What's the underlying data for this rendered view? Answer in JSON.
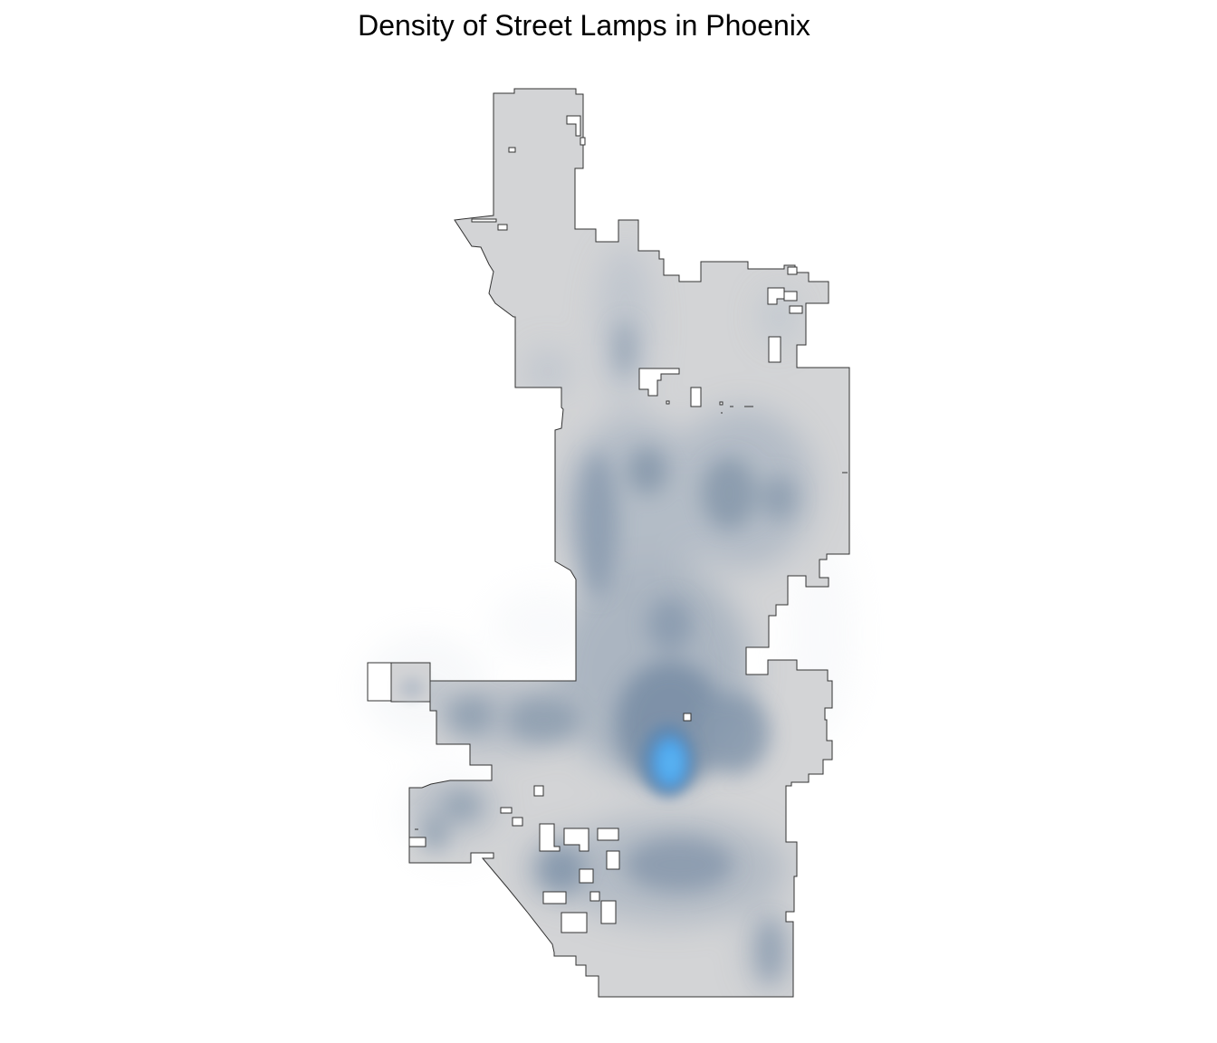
{
  "title": "Density of Street Lamps in Phoenix",
  "map": {
    "type": "kernel-density-heatmap",
    "region": "Phoenix",
    "colors": {
      "boundary_fill": "#d3d4d6",
      "boundary_stroke": "#333333",
      "density_low": "#c6ccd4",
      "density_mid": "#7e93aa",
      "density_high": "#4da6ec",
      "background": "#ffffff"
    },
    "legend": "none",
    "axes": "none"
  }
}
